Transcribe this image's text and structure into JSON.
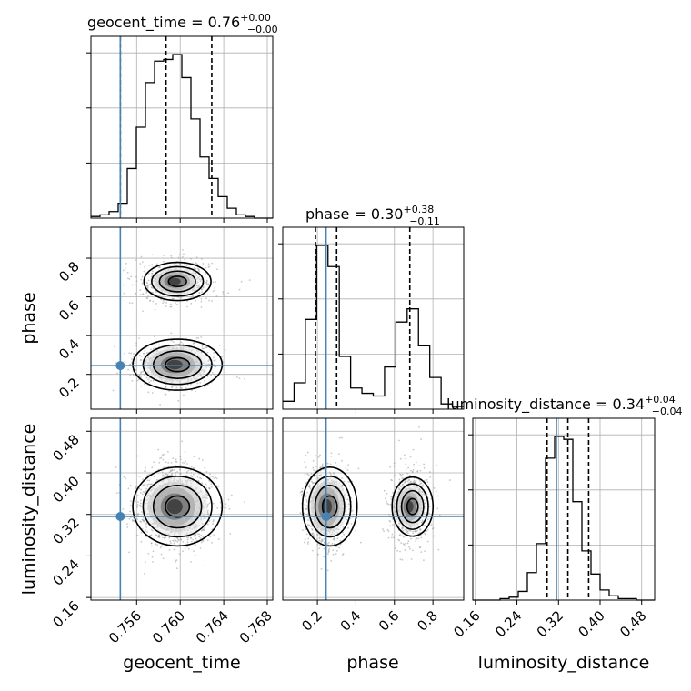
{
  "chart_data": {
    "type": "corner",
    "parameters": [
      {
        "key": "geocent_time",
        "label": "geocent_time",
        "truth": 0.7545,
        "range": [
          0.7518,
          0.7685
        ],
        "ticks": [
          "0.756",
          "0.760",
          "0.764",
          "0.768"
        ],
        "tick_values": [
          0.756,
          0.76,
          0.764,
          0.768
        ],
        "title_name": "geocent_time",
        "title_value": "0.76",
        "title_plus": "+0.00",
        "title_minus": "−0.00",
        "quantiles": [
          0.7545,
          0.7587,
          0.7629
        ],
        "hist_bins_from": 0.7518,
        "hist_bins_to": 0.7685,
        "hist": [
          1,
          2,
          4,
          9,
          30,
          55,
          82,
          95,
          96,
          99,
          85,
          60,
          37,
          24,
          13,
          6,
          2,
          1,
          0,
          0
        ]
      },
      {
        "key": "phase",
        "label": "phase",
        "truth": 0.245,
        "range": [
          0.02,
          0.96
        ],
        "ticks": [
          "0.2",
          "0.4",
          "0.6",
          "0.8"
        ],
        "tick_values": [
          0.2,
          0.4,
          0.6,
          0.8
        ],
        "title_name": "phase",
        "title_value": "0.30",
        "title_plus": "+0.38",
        "title_minus": "−0.11",
        "quantiles": [
          0.19,
          0.3,
          0.68
        ],
        "hist_bins_from": 0.02,
        "hist_bins_to": 0.96,
        "hist": [
          3,
          10,
          34,
          62,
          54,
          20,
          8,
          6,
          5,
          16,
          33,
          38,
          24,
          12,
          2,
          1
        ]
      },
      {
        "key": "luminosity_distance",
        "label": "luminosity_distance",
        "truth": 0.316,
        "range": [
          0.155,
          0.505
        ],
        "ticks": [
          "0.16",
          "0.24",
          "0.32",
          "0.40",
          "0.48"
        ],
        "tick_values": [
          0.16,
          0.24,
          0.32,
          0.4,
          0.48
        ],
        "title_name": "luminosity_distance",
        "title_value": "0.34",
        "title_plus": "+0.04",
        "title_minus": "−0.04",
        "quantiles": [
          0.298,
          0.338,
          0.378
        ],
        "hist_bins_from": 0.155,
        "hist_bins_to": 0.505,
        "hist": [
          0,
          0,
          0,
          1,
          2,
          6,
          19,
          39,
          98,
          113,
          111,
          68,
          34,
          18,
          7,
          3,
          1,
          1,
          0,
          0
        ]
      }
    ],
    "modes": {
      "phase_peaks": [
        0.25,
        0.68
      ],
      "geocent_center": 0.7595,
      "luminosity_center": 0.335
    },
    "colors": {
      "truth": "#4682b4",
      "hist": "#000000",
      "quantile": "#000000",
      "grid": "#b0b0b0",
      "samples": "#9a9a9a"
    },
    "grid": true,
    "quantile_style": "dashed"
  }
}
